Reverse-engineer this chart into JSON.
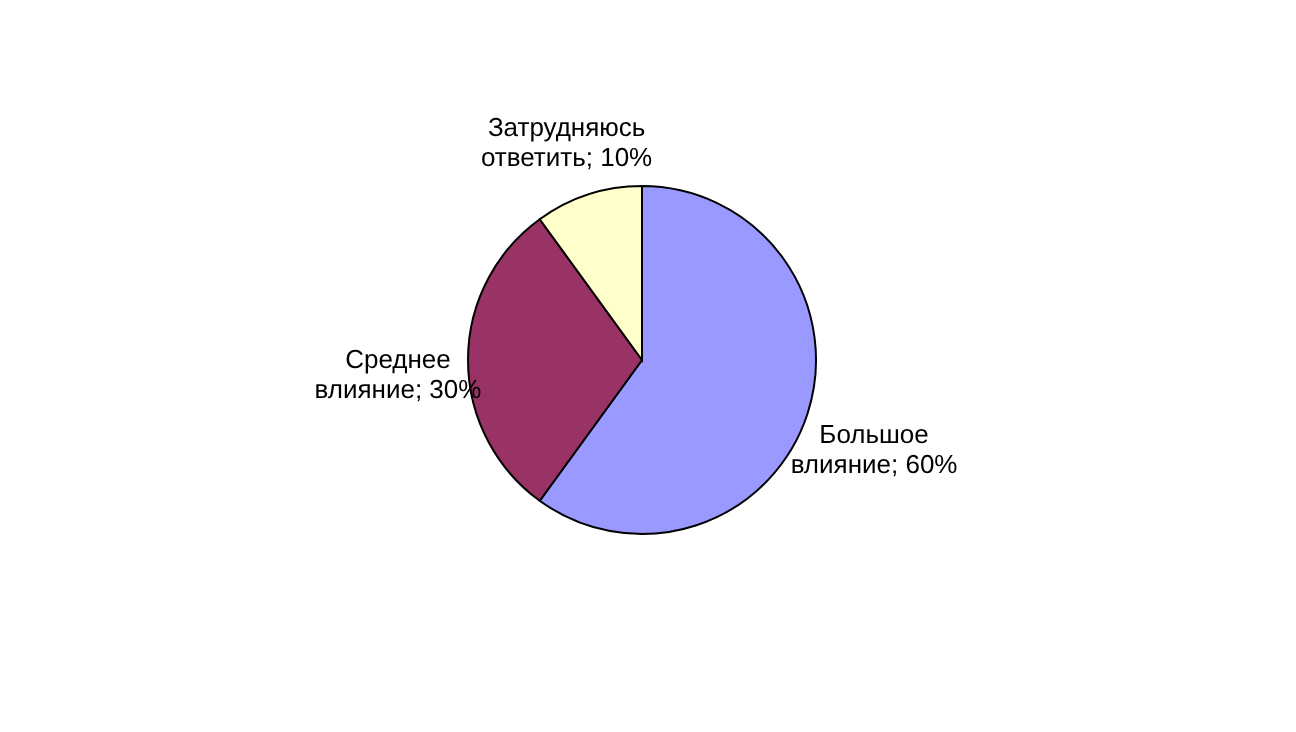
{
  "chart_data": {
    "type": "pie",
    "categories": [
      "Большое влияние",
      "Среднее влияние",
      "Затрудняюсь ответить"
    ],
    "values": [
      60,
      30,
      10
    ],
    "colors": [
      "#9999ff",
      "#993366",
      "#ffffcc"
    ],
    "value_labels": [
      "60%",
      "30%",
      "10%"
    ]
  }
}
